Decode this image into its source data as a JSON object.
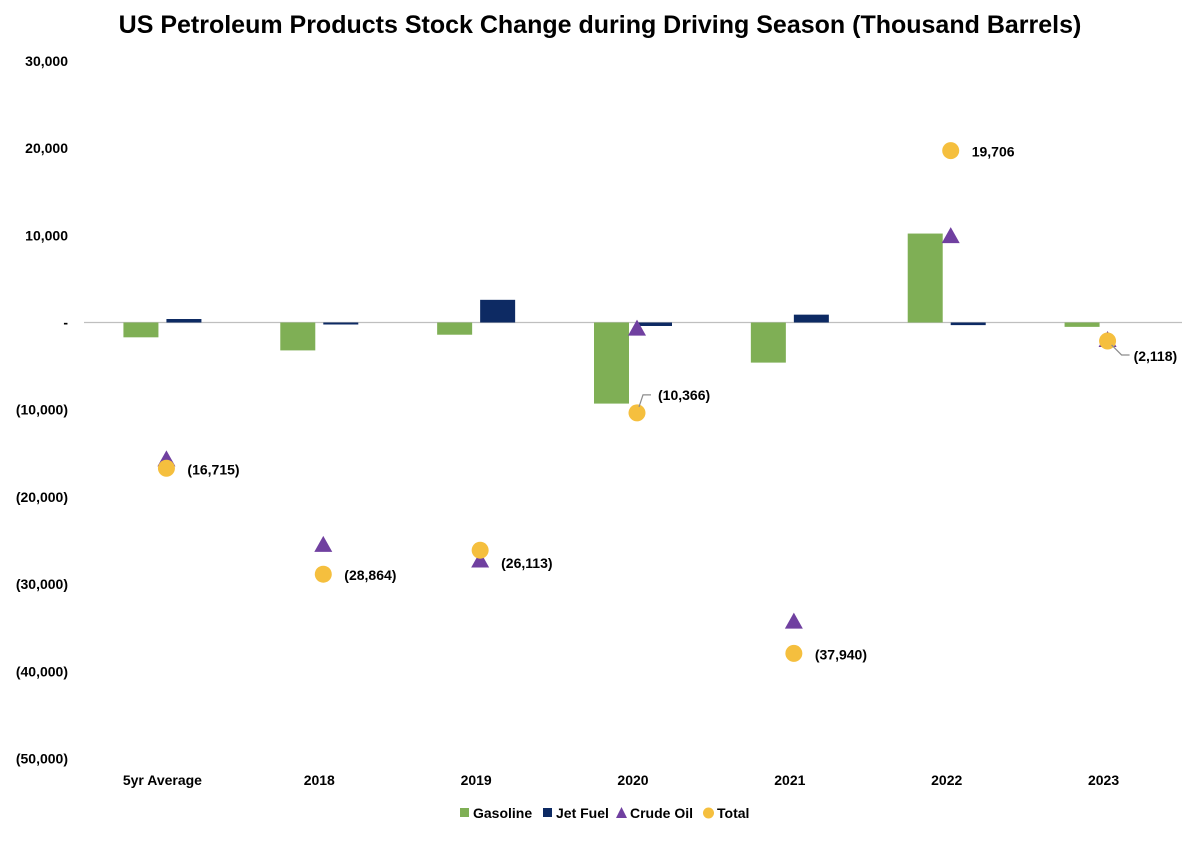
{
  "chart_data": {
    "type": "bar",
    "title": "US Petroleum Products Stock Change during Driving Season (Thousand Barrels)",
    "xlabel": "",
    "ylabel": "",
    "ylim": [
      -50000,
      30000
    ],
    "yticks": [
      30000,
      20000,
      10000,
      0,
      -10000,
      -20000,
      -30000,
      -40000,
      -50000
    ],
    "ytick_labels": [
      "30,000",
      "20,000",
      "10,000",
      "-",
      "(10,000)",
      "(20,000)",
      "(30,000)",
      "(40,000)",
      "(50,000)"
    ],
    "categories": [
      "5yr Average",
      "2018",
      "2019",
      "2020",
      "2021",
      "2022",
      "2023"
    ],
    "series": [
      {
        "name": "Gasoline",
        "kind": "bar",
        "color": "#7faf55",
        "values": [
          -1700,
          -3200,
          -1400,
          -9300,
          -4600,
          10200,
          -500
        ]
      },
      {
        "name": "Jet Fuel",
        "kind": "bar",
        "color": "#0d2a63",
        "values": [
          400,
          -200,
          2600,
          -400,
          900,
          -300,
          0
        ]
      },
      {
        "name": "Crude Oil",
        "kind": "triangle",
        "color": "#7040a0",
        "values": [
          -15700,
          -25500,
          -27300,
          -700,
          -34300,
          9900,
          -2000
        ]
      },
      {
        "name": "Total",
        "kind": "circle",
        "color": "#f5bf3e",
        "values": [
          -16715,
          -28864,
          -26113,
          -10366,
          -37940,
          19706,
          -2118
        ]
      }
    ],
    "data_labels": [
      "(16,715)",
      "(28,864)",
      "(26,113)",
      "(10,366)",
      "(37,940)",
      "19,706",
      "(2,118)"
    ],
    "legend_position": "bottom",
    "grid": false
  }
}
